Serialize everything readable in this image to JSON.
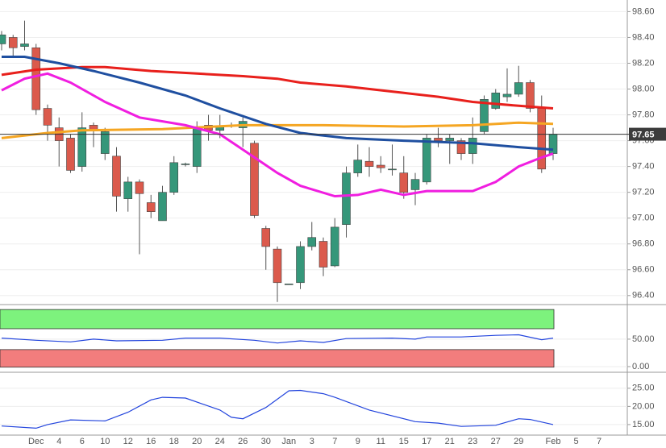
{
  "chart_data": [
    {
      "type": "candlestick",
      "categories": [
        null,
        null,
        null,
        "Dec",
        null,
        "4",
        null,
        "6",
        null,
        "10",
        null,
        "12",
        null,
        "16",
        null,
        "18",
        null,
        "20",
        null,
        "24",
        null,
        "26",
        null,
        "30",
        null,
        "Jan",
        null,
        "3",
        null,
        "7",
        null,
        "9",
        null,
        "11",
        null,
        "15",
        null,
        "17",
        null,
        "21",
        null,
        "23",
        null,
        "27",
        null,
        "29",
        null,
        null,
        "Feb",
        null,
        "5",
        null,
        "7"
      ],
      "open": [
        98.35,
        98.4,
        98.33,
        98.32,
        97.85,
        97.7,
        97.62,
        97.4,
        97.72,
        97.5,
        97.48,
        97.15,
        97.28,
        97.12,
        96.98,
        97.2,
        97.42,
        97.4,
        97.72,
        97.68,
        97.72,
        97.7,
        97.58,
        96.92,
        96.76,
        96.49,
        96.5,
        96.78,
        96.82,
        96.63,
        96.95,
        97.35,
        97.44,
        97.41,
        97.38,
        97.35,
        97.22,
        97.28,
        97.62,
        97.6,
        97.6,
        97.5,
        97.67,
        97.85,
        97.94,
        97.96,
        98.05,
        97.85,
        97.5,
        null,
        null,
        null,
        null
      ],
      "high": [
        98.45,
        98.42,
        98.53,
        98.35,
        97.88,
        97.78,
        97.65,
        97.82,
        97.74,
        97.7,
        97.55,
        97.32,
        97.3,
        97.18,
        97.25,
        97.48,
        97.43,
        97.75,
        97.8,
        97.8,
        97.74,
        97.78,
        97.6,
        96.94,
        96.78,
        96.49,
        96.82,
        96.97,
        96.85,
        97.0,
        97.4,
        97.57,
        97.55,
        97.48,
        97.57,
        97.48,
        97.35,
        97.65,
        97.7,
        97.65,
        97.62,
        97.78,
        97.95,
        98.0,
        98.16,
        98.18,
        98.07,
        97.95,
        97.7,
        null,
        null,
        null,
        null
      ],
      "low": [
        98.3,
        98.25,
        98.3,
        97.8,
        97.6,
        97.4,
        97.35,
        97.36,
        97.55,
        97.45,
        97.05,
        97.05,
        96.72,
        97.0,
        96.98,
        97.18,
        97.4,
        97.35,
        97.6,
        97.62,
        97.7,
        97.55,
        97.0,
        96.6,
        96.35,
        96.49,
        96.45,
        96.75,
        96.55,
        96.62,
        96.85,
        97.32,
        97.32,
        97.35,
        97.33,
        97.15,
        97.1,
        97.26,
        97.55,
        97.42,
        97.45,
        97.42,
        97.65,
        97.84,
        97.9,
        97.94,
        97.82,
        97.35,
        97.45,
        null,
        null,
        null,
        null
      ],
      "close": [
        98.42,
        98.32,
        98.35,
        97.84,
        97.72,
        97.6,
        97.37,
        97.7,
        97.68,
        97.67,
        97.17,
        97.28,
        97.19,
        97.05,
        97.2,
        97.43,
        97.42,
        97.7,
        97.68,
        97.71,
        97.72,
        97.75,
        97.02,
        96.78,
        96.5,
        96.49,
        96.78,
        96.85,
        96.62,
        96.93,
        97.35,
        97.45,
        97.4,
        97.39,
        97.38,
        97.2,
        97.3,
        97.62,
        97.6,
        97.62,
        97.5,
        97.62,
        97.92,
        97.97,
        97.96,
        98.05,
        97.85,
        97.38,
        97.65,
        null,
        null,
        null,
        null
      ],
      "up_color": "#35977a",
      "down_color": "#db5a4c",
      "series": [
        {
          "color": "#e8201c",
          "x": [
            0,
            3,
            7,
            9,
            13,
            17,
            21,
            24,
            26,
            30,
            35,
            38,
            41,
            45,
            48
          ],
          "values": [
            98.11,
            98.15,
            98.17,
            98.17,
            98.14,
            98.12,
            98.1,
            98.08,
            98.05,
            98.02,
            97.97,
            97.94,
            97.9,
            97.87,
            97.85
          ]
        },
        {
          "color": "#f5a623",
          "x": [
            0,
            4,
            7,
            14,
            21,
            28,
            35,
            41,
            45,
            48
          ],
          "values": [
            97.62,
            97.66,
            97.68,
            97.69,
            97.72,
            97.72,
            97.71,
            97.72,
            97.74,
            97.73
          ]
        },
        {
          "color": "#1f4fa0",
          "x": [
            0,
            2,
            5,
            8,
            12,
            16,
            19,
            23,
            26,
            30,
            35,
            41,
            45,
            48
          ],
          "values": [
            98.25,
            98.25,
            98.2,
            98.14,
            98.05,
            97.95,
            97.85,
            97.73,
            97.66,
            97.62,
            97.6,
            97.58,
            97.55,
            97.53
          ]
        },
        {
          "color": "#f01ee0",
          "x": [
            0,
            2,
            4,
            6,
            9,
            12,
            16,
            19,
            21,
            24,
            26,
            29,
            31,
            33,
            35,
            37,
            41,
            43,
            45,
            47,
            48
          ],
          "values": [
            97.99,
            98.08,
            98.12,
            98.05,
            97.9,
            97.78,
            97.72,
            97.65,
            97.53,
            97.35,
            97.25,
            97.17,
            97.18,
            97.22,
            97.18,
            97.21,
            97.21,
            97.28,
            97.4,
            97.47,
            97.5
          ]
        }
      ],
      "current": {
        "value": 97.65,
        "label": "97.65"
      },
      "ylim": [
        96.33,
        98.69
      ],
      "yticks": [
        {
          "value": 98.6,
          "label": "98.60"
        },
        {
          "value": 98.4,
          "label": "98.40"
        },
        {
          "value": 98.2,
          "label": "98.20"
        },
        {
          "value": 98.0,
          "label": "98.00"
        },
        {
          "value": 97.8,
          "label": "97.80"
        },
        {
          "value": 97.6,
          "label": "97.60"
        },
        {
          "value": 97.4,
          "label": "97.40"
        },
        {
          "value": 97.2,
          "label": "97.20"
        },
        {
          "value": 97.0,
          "label": "97.00"
        },
        {
          "value": 96.8,
          "label": "96.80"
        },
        {
          "value": 96.6,
          "label": "96.60"
        },
        {
          "value": 96.4,
          "label": "96.40"
        }
      ]
    },
    {
      "type": "line",
      "bands": [
        {
          "from": 69,
          "to": 104,
          "color": "#7df27d"
        },
        {
          "from": -1,
          "to": 31,
          "color": "#f27d7d"
        }
      ],
      "series": [
        {
          "color": "#2244dd",
          "x": [
            0,
            3,
            6,
            8,
            10,
            14,
            16,
            19,
            22,
            24,
            26,
            28,
            30,
            34,
            36,
            37,
            40,
            43,
            45,
            47,
            48
          ],
          "values": [
            52,
            48,
            45,
            50,
            47,
            48,
            52,
            52,
            48,
            43,
            47,
            44,
            51,
            52,
            50,
            54,
            54,
            57,
            58,
            49,
            52
          ]
        }
      ],
      "ylim": [
        -10.3,
        113
      ],
      "yticks": [
        {
          "value": 50,
          "label": "50.00"
        },
        {
          "value": 0,
          "label": "0.00"
        }
      ]
    },
    {
      "type": "line",
      "series": [
        {
          "color": "#2244dd",
          "x": [
            0,
            3,
            4,
            6,
            9,
            11,
            13,
            14,
            16,
            19,
            20,
            21,
            23,
            25,
            26,
            28,
            29,
            32,
            36,
            38,
            40,
            43,
            45,
            46,
            48
          ],
          "values": [
            14.6,
            14,
            15,
            16.3,
            16,
            18.4,
            21.8,
            22.5,
            22.3,
            19,
            17,
            16.6,
            19.7,
            24.3,
            24.4,
            23.5,
            22.5,
            19,
            15.8,
            15.4,
            14.5,
            14.8,
            16.6,
            16.4,
            15
          ]
        }
      ],
      "ylim": [
        12.1,
        29.4
      ],
      "yticks": [
        {
          "value": 25,
          "label": "25.00"
        },
        {
          "value": 20,
          "label": "20.00"
        },
        {
          "value": 15,
          "label": "15.00"
        }
      ]
    }
  ]
}
